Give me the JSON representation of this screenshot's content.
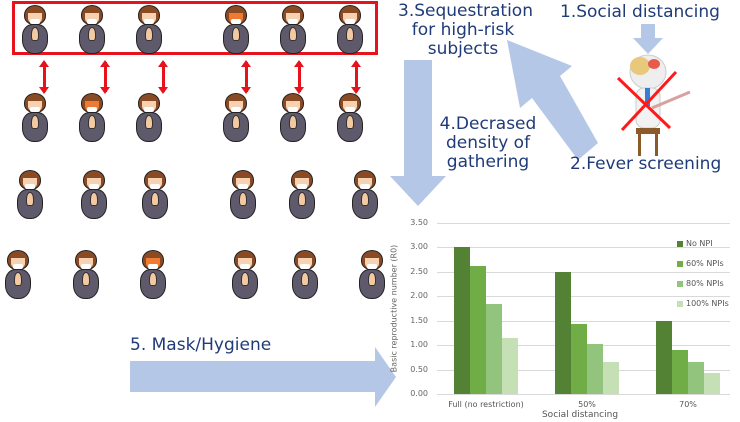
{
  "labels": {
    "social_distancing": "1.Social distancing",
    "fever_screening": "2.Fever screening",
    "sequestration": [
      "3.Sequestration",
      "for high-risk",
      "subjects"
    ],
    "density": [
      "4.Decrased",
      "density of",
      "gathering"
    ],
    "mask": "5. Mask/Hygiene"
  },
  "colors": {
    "arrow": "#b4c7e7",
    "label_text": "#1f3b78",
    "red_box": "#e8121c",
    "no_npi": "#548235",
    "npi60": "#70ad47",
    "npi80": "#93c47d",
    "npi100": "#c5e0b4"
  },
  "chart_data": {
    "type": "bar",
    "title": "",
    "xlabel": "Social distancing",
    "ylabel": "Basic reproductive number (R0)",
    "categories": [
      "Full (no restriction)",
      "50%",
      "70%"
    ],
    "series": [
      {
        "name": "No NPI",
        "values": [
          3.0,
          2.5,
          1.5
        ]
      },
      {
        "name": "60% NPIs",
        "values": [
          2.62,
          1.42,
          0.89
        ]
      },
      {
        "name": "80% NPIs",
        "values": [
          1.83,
          1.02,
          0.66
        ]
      },
      {
        "name": "100% NPIs",
        "values": [
          1.15,
          0.66,
          0.42
        ]
      }
    ],
    "yticks": [
      "0.00",
      "0.50",
      "1.00",
      "1.50",
      "2.00",
      "2.50",
      "3.00",
      "3.50"
    ],
    "ylim": [
      0,
      3.5
    ],
    "grid": true,
    "legend_position": "upper right"
  }
}
